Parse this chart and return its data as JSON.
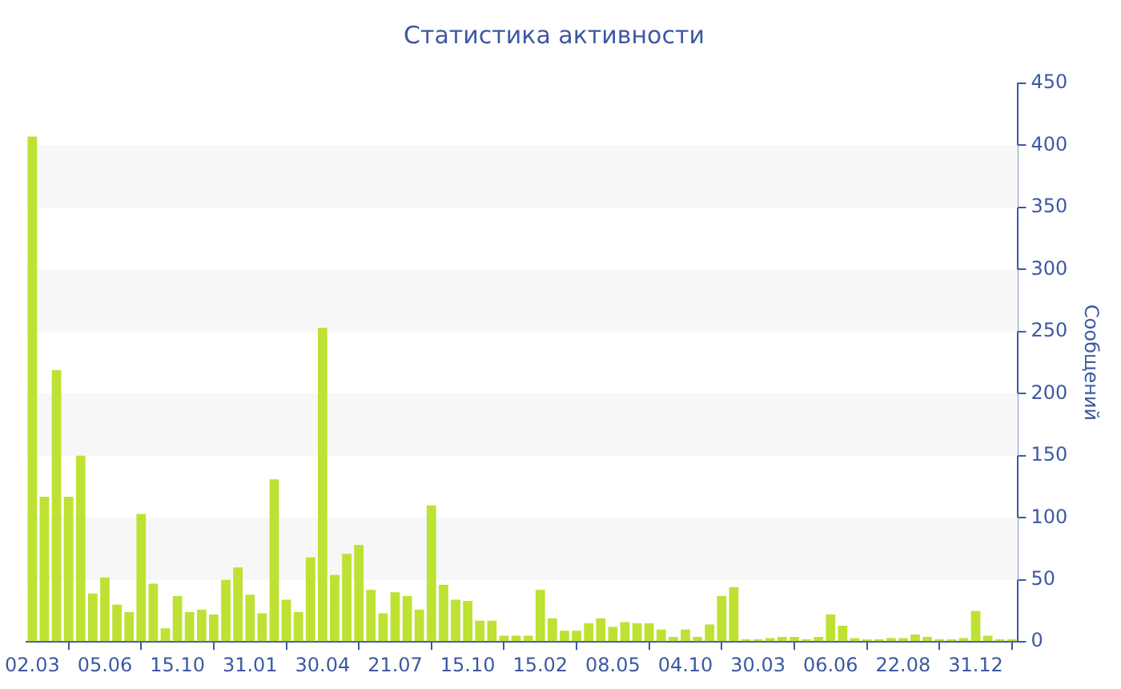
{
  "chart_data": {
    "type": "bar",
    "title": "Статистика активности",
    "ylabel": "Сообщений",
    "categories": [
      "02.03",
      null,
      null,
      null,
      null,
      null,
      "05.06",
      null,
      null,
      null,
      null,
      null,
      "15.10",
      null,
      null,
      null,
      null,
      null,
      "31.01",
      null,
      null,
      null,
      null,
      null,
      "30.04",
      null,
      null,
      null,
      null,
      null,
      "21.07",
      null,
      null,
      null,
      null,
      null,
      "15.10",
      null,
      null,
      null,
      null,
      null,
      "15.02",
      null,
      null,
      null,
      null,
      null,
      "08.05",
      null,
      null,
      null,
      null,
      null,
      "04.10",
      null,
      null,
      null,
      null,
      null,
      "30.03",
      null,
      null,
      null,
      null,
      null,
      "06.06",
      null,
      null,
      null,
      null,
      null,
      "22.08",
      null,
      null,
      null,
      null,
      null,
      "31.12",
      null,
      null,
      null
    ],
    "values": [
      407,
      117,
      219,
      117,
      150,
      39,
      52,
      30,
      24,
      103,
      47,
      11,
      37,
      24,
      26,
      22,
      50,
      60,
      38,
      23,
      131,
      34,
      24,
      68,
      253,
      54,
      71,
      78,
      42,
      23,
      40,
      37,
      26,
      110,
      46,
      34,
      33,
      17,
      17,
      5,
      5,
      5,
      42,
      19,
      9,
      9,
      15,
      19,
      12,
      16,
      15,
      15,
      10,
      4,
      10,
      4,
      14,
      37,
      44,
      2,
      2,
      3,
      4,
      4,
      2,
      4,
      22,
      13,
      3,
      2,
      2,
      3,
      3,
      6,
      4,
      2,
      2,
      3,
      25,
      5,
      2,
      2
    ],
    "color": "#bde233",
    "ylim": [
      0,
      450
    ],
    "yticks": [
      0,
      50,
      100,
      150,
      200,
      250,
      300,
      350,
      400,
      450
    ],
    "bands": [
      {
        "axis": "y",
        "from": 50,
        "to": 100,
        "color": "#f7f7f7"
      },
      {
        "axis": "y",
        "from": 150,
        "to": 200,
        "color": "#f7f7f7"
      },
      {
        "axis": "y",
        "from": 250,
        "to": 300,
        "color": "#f7f7f7"
      },
      {
        "axis": "y",
        "from": 350,
        "to": 400,
        "color": "#f7f7f7"
      }
    ]
  }
}
